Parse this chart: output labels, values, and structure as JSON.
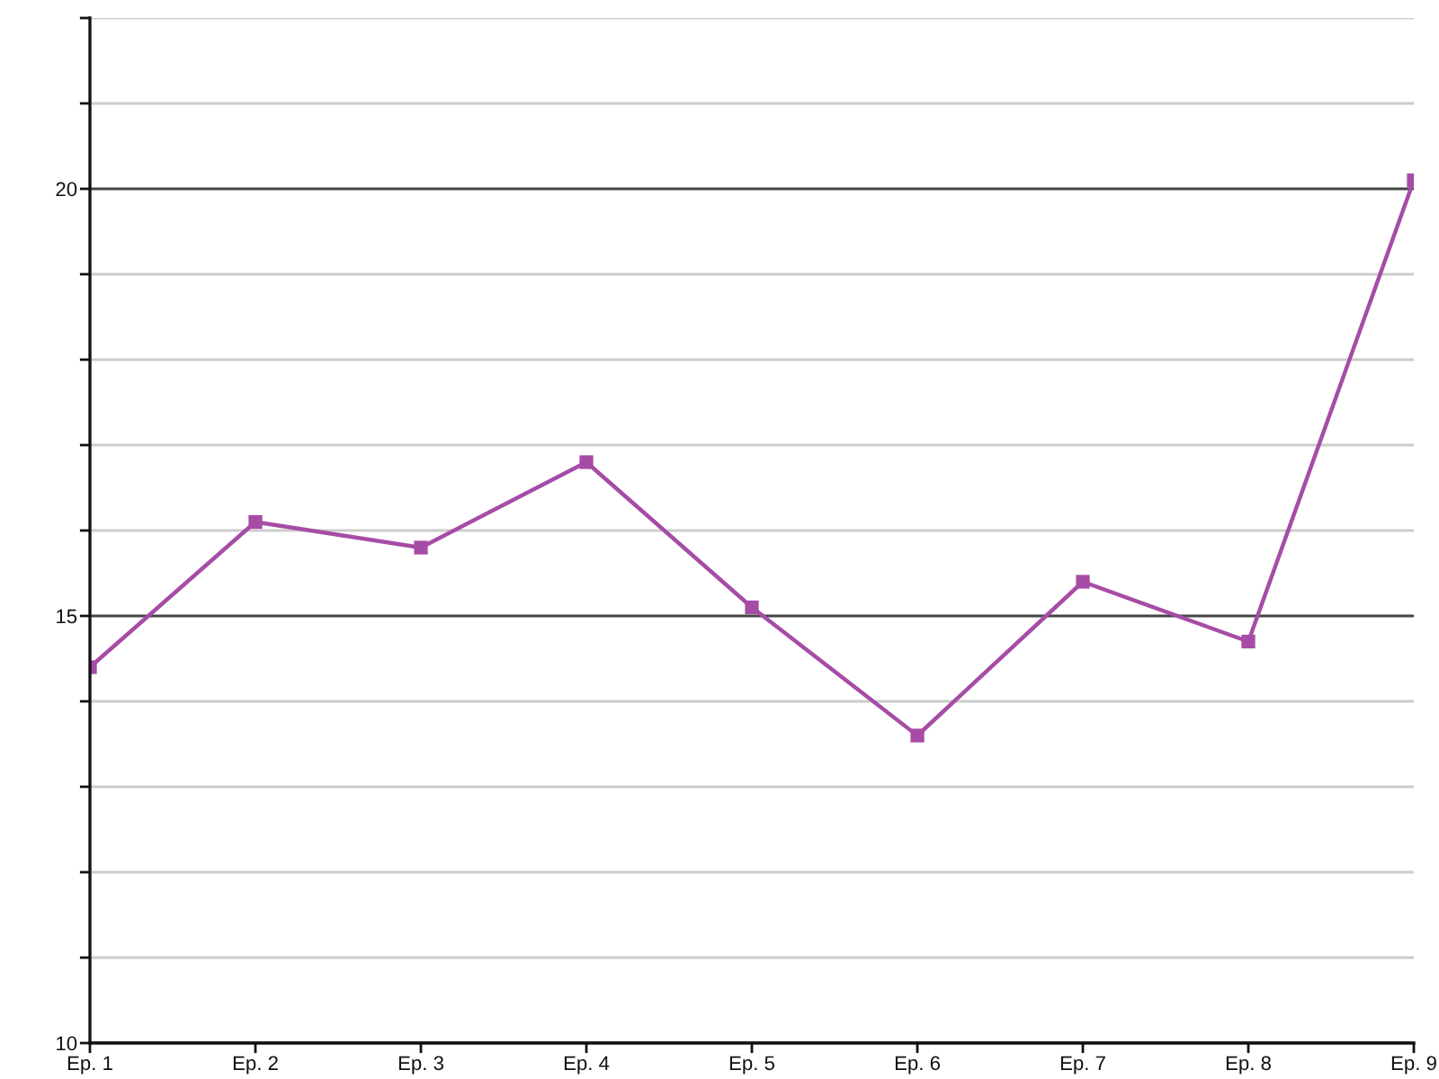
{
  "chart_data": {
    "type": "line",
    "categories": [
      "Ep. 1",
      "Ep. 2",
      "Ep. 3",
      "Ep. 4",
      "Ep. 5",
      "Ep. 6",
      "Ep. 7",
      "Ep. 8",
      "Ep. 9"
    ],
    "series": [
      {
        "color": "#a64ca6",
        "values": [
          14.4,
          16.1,
          15.8,
          16.8,
          15.1,
          13.6,
          15.4,
          14.7,
          20.1
        ]
      }
    ],
    "ylim": [
      10,
      22
    ],
    "yticks": [
      10,
      {
        "value": 11,
        "label": null
      },
      {
        "value": 12,
        "label": null
      },
      {
        "value": 13,
        "label": null
      },
      {
        "value": 14,
        "label": null
      },
      15,
      {
        "value": 16,
        "label": null
      },
      {
        "value": 17,
        "label": null
      },
      {
        "value": 18,
        "label": null
      },
      {
        "value": 19,
        "label": null
      },
      20,
      {
        "value": 21,
        "label": null
      },
      {
        "value": 22,
        "label": null
      }
    ],
    "grid": "y",
    "marker": "square",
    "line_style": "solid"
  }
}
